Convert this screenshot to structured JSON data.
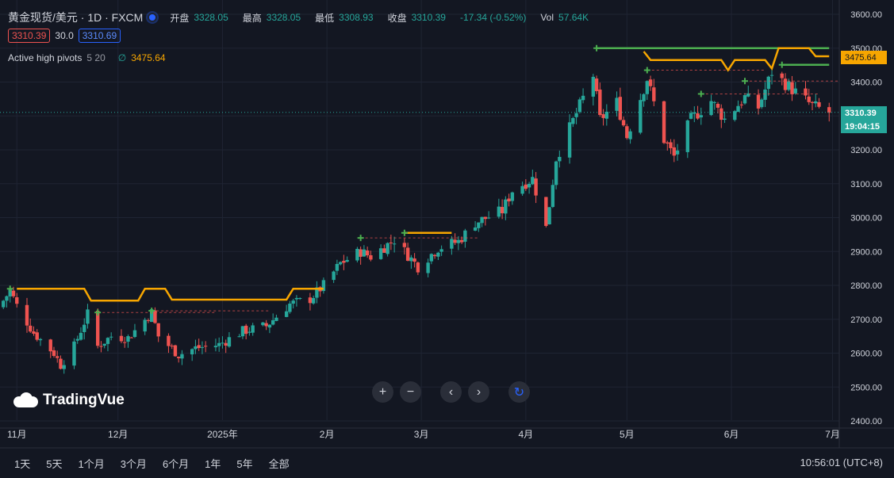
{
  "header": {
    "title": "黄金现货/美元 · 1D · FXCM",
    "open_label": "开盘",
    "open": "3328.05",
    "high_label": "最高",
    "high": "3328.05",
    "low_label": "最低",
    "low": "3308.93",
    "close_label": "收盘",
    "close": "3310.39",
    "change": "-17.34 (-0.52%)",
    "vol_label": "Vol",
    "vol": "57.64K",
    "bid": "3310.39",
    "spread": "30.0",
    "ask": "3310.69"
  },
  "indicator": {
    "name": "Active high pivots",
    "params": "5 20",
    "symbol": "∅",
    "value": "3475.64"
  },
  "price_tags": {
    "pivot": "3475.64",
    "last": "3310.39",
    "countdown": "19:04:15"
  },
  "colors": {
    "up": "#26a69a",
    "down": "#ef5350",
    "pivot_line": "#f7a600",
    "active_line": "#4caf50",
    "last_line": "#26a69a"
  },
  "navigation": {
    "zoom_in_icon": "plus-icon",
    "zoom_out_icon": "minus-icon",
    "scroll_left_icon": "chevron-left-icon",
    "scroll_right_icon": "chevron-right-icon",
    "reset_icon": "reset-icon"
  },
  "logo_text": "TradingVue",
  "bottom": {
    "ranges": [
      "1天",
      "5天",
      "1个月",
      "3个月",
      "6个月",
      "1年",
      "5年",
      "全部"
    ],
    "clock": "10:56:01 (UTC+8)"
  },
  "chart_data": {
    "type": "candlestick",
    "title": "黄金现货/美元 · 1D · FXCM",
    "y_ticks": [
      3600,
      3500,
      3400,
      3300,
      3200,
      3100,
      3000,
      2900,
      2800,
      2700,
      2600,
      2500,
      2400
    ],
    "y_tick_labels": [
      "3600.00",
      "3500.00",
      "3400.00",
      "3300.00",
      "3200.00",
      "3100.00",
      "3000.00",
      "2900.00",
      "2800.00",
      "2700.00",
      "2600.00",
      "2500.00",
      "2400.00"
    ],
    "ylim": [
      2400,
      3625
    ],
    "x_ticks": [
      {
        "label": "11月",
        "date": "2024-11-01"
      },
      {
        "label": "12月",
        "date": "2024-12-01"
      },
      {
        "label": "2025年",
        "date": "2025-01-01"
      },
      {
        "label": "2月",
        "date": "2025-02-01"
      },
      {
        "label": "3月",
        "date": "2025-03-01"
      },
      {
        "label": "4月",
        "date": "2025-04-01"
      },
      {
        "label": "5月",
        "date": "2025-05-01"
      },
      {
        "label": "6月",
        "date": "2025-06-01"
      },
      {
        "label": "7月",
        "date": "2025-07-01"
      }
    ],
    "xlim": [
      "2024-10-27",
      "2025-07-03"
    ],
    "close_anchors": [
      [
        "2024-10-27",
        2740
      ],
      [
        "2024-10-30",
        2785
      ],
      [
        "2024-11-01",
        2740
      ],
      [
        "2024-11-06",
        2660
      ],
      [
        "2024-11-12",
        2600
      ],
      [
        "2024-11-14",
        2565
      ],
      [
        "2024-11-18",
        2620
      ],
      [
        "2024-11-22",
        2715
      ],
      [
        "2024-11-25",
        2620
      ],
      [
        "2024-11-29",
        2650
      ],
      [
        "2024-12-04",
        2645
      ],
      [
        "2024-12-11",
        2720
      ],
      [
        "2024-12-13",
        2650
      ],
      [
        "2024-12-19",
        2595
      ],
      [
        "2024-12-24",
        2615
      ],
      [
        "2024-12-31",
        2625
      ],
      [
        "2025-01-07",
        2665
      ],
      [
        "2025-01-14",
        2680
      ],
      [
        "2025-01-21",
        2745
      ],
      [
        "2025-01-27",
        2760
      ],
      [
        "2025-01-31",
        2800
      ],
      [
        "2025-02-05",
        2865
      ],
      [
        "2025-02-11",
        2900
      ],
      [
        "2025-02-14",
        2885
      ],
      [
        "2025-02-21",
        2935
      ],
      [
        "2025-02-28",
        2855
      ],
      [
        "2025-03-06",
        2910
      ],
      [
        "2025-03-12",
        2930
      ],
      [
        "2025-03-17",
        2985
      ],
      [
        "2025-03-25",
        3020
      ],
      [
        "2025-03-28",
        3080
      ],
      [
        "2025-04-03",
        3115
      ],
      [
        "2025-04-07",
        2970
      ],
      [
        "2025-04-10",
        3175
      ],
      [
        "2025-04-17",
        3330
      ],
      [
        "2025-04-21",
        3420
      ],
      [
        "2025-04-23",
        3290
      ],
      [
        "2025-04-28",
        3340
      ],
      [
        "2025-05-01",
        3240
      ],
      [
        "2025-05-07",
        3410
      ],
      [
        "2025-05-12",
        3230
      ],
      [
        "2025-05-15",
        3180
      ],
      [
        "2025-05-20",
        3290
      ],
      [
        "2025-05-26",
        3345
      ],
      [
        "2025-05-30",
        3290
      ],
      [
        "2025-06-05",
        3355
      ],
      [
        "2025-06-09",
        3325
      ],
      [
        "2025-06-13",
        3430
      ],
      [
        "2025-06-20",
        3370
      ],
      [
        "2025-06-25",
        3330
      ],
      [
        "2025-06-30",
        3310
      ]
    ],
    "high_pivots": [
      {
        "date": "2024-10-30",
        "price": 2790,
        "active_until": "2024-11-19",
        "line": [
          [
            "2024-11-01",
            2790
          ],
          [
            "2024-11-21",
            2790
          ],
          [
            "2024-11-23",
            2755
          ],
          [
            "2024-12-07",
            2755
          ],
          [
            "2024-12-09",
            2790
          ],
          [
            "2024-12-15",
            2790
          ],
          [
            "2024-12-17",
            2758
          ],
          [
            "2025-01-20",
            2758
          ],
          [
            "2025-01-22",
            2790
          ],
          [
            "2025-01-31",
            2790
          ]
        ]
      },
      {
        "date": "2024-11-25",
        "price": 2720
      },
      {
        "date": "2024-12-11",
        "price": 2725
      },
      {
        "date": "2025-02-11",
        "price": 2940
      },
      {
        "date": "2025-02-24",
        "price": 2955,
        "line": [
          [
            "2025-02-24",
            2955
          ],
          [
            "2025-03-10",
            2955
          ]
        ]
      },
      {
        "date": "2025-04-22",
        "price": 3500,
        "line": [
          [
            "2025-04-22",
            3500
          ],
          [
            "2025-06-30",
            3500
          ]
        ]
      },
      {
        "date": "2025-05-07",
        "price": 3435
      },
      {
        "date": "2025-05-23",
        "price": 3365
      },
      {
        "date": "2025-06-05",
        "price": 3403
      },
      {
        "date": "2025-06-16",
        "price": 3451,
        "line": [
          [
            "2025-06-16",
            3451
          ],
          [
            "2025-06-30",
            3451
          ]
        ]
      }
    ],
    "pivot_step_line": [
      [
        "2025-05-06",
        3490
      ],
      [
        "2025-05-08",
        3465
      ],
      [
        "2025-05-29",
        3465
      ],
      [
        "2025-05-31",
        3435
      ],
      [
        "2025-06-02",
        3465
      ],
      [
        "2025-06-11",
        3465
      ],
      [
        "2025-06-13",
        3440
      ],
      [
        "2025-06-15",
        3500
      ],
      [
        "2025-06-24",
        3500
      ],
      [
        "2025-06-26",
        3476
      ],
      [
        "2025-06-30",
        3476
      ]
    ],
    "last_price": 3310.39,
    "pivot_value": 3475.64
  }
}
